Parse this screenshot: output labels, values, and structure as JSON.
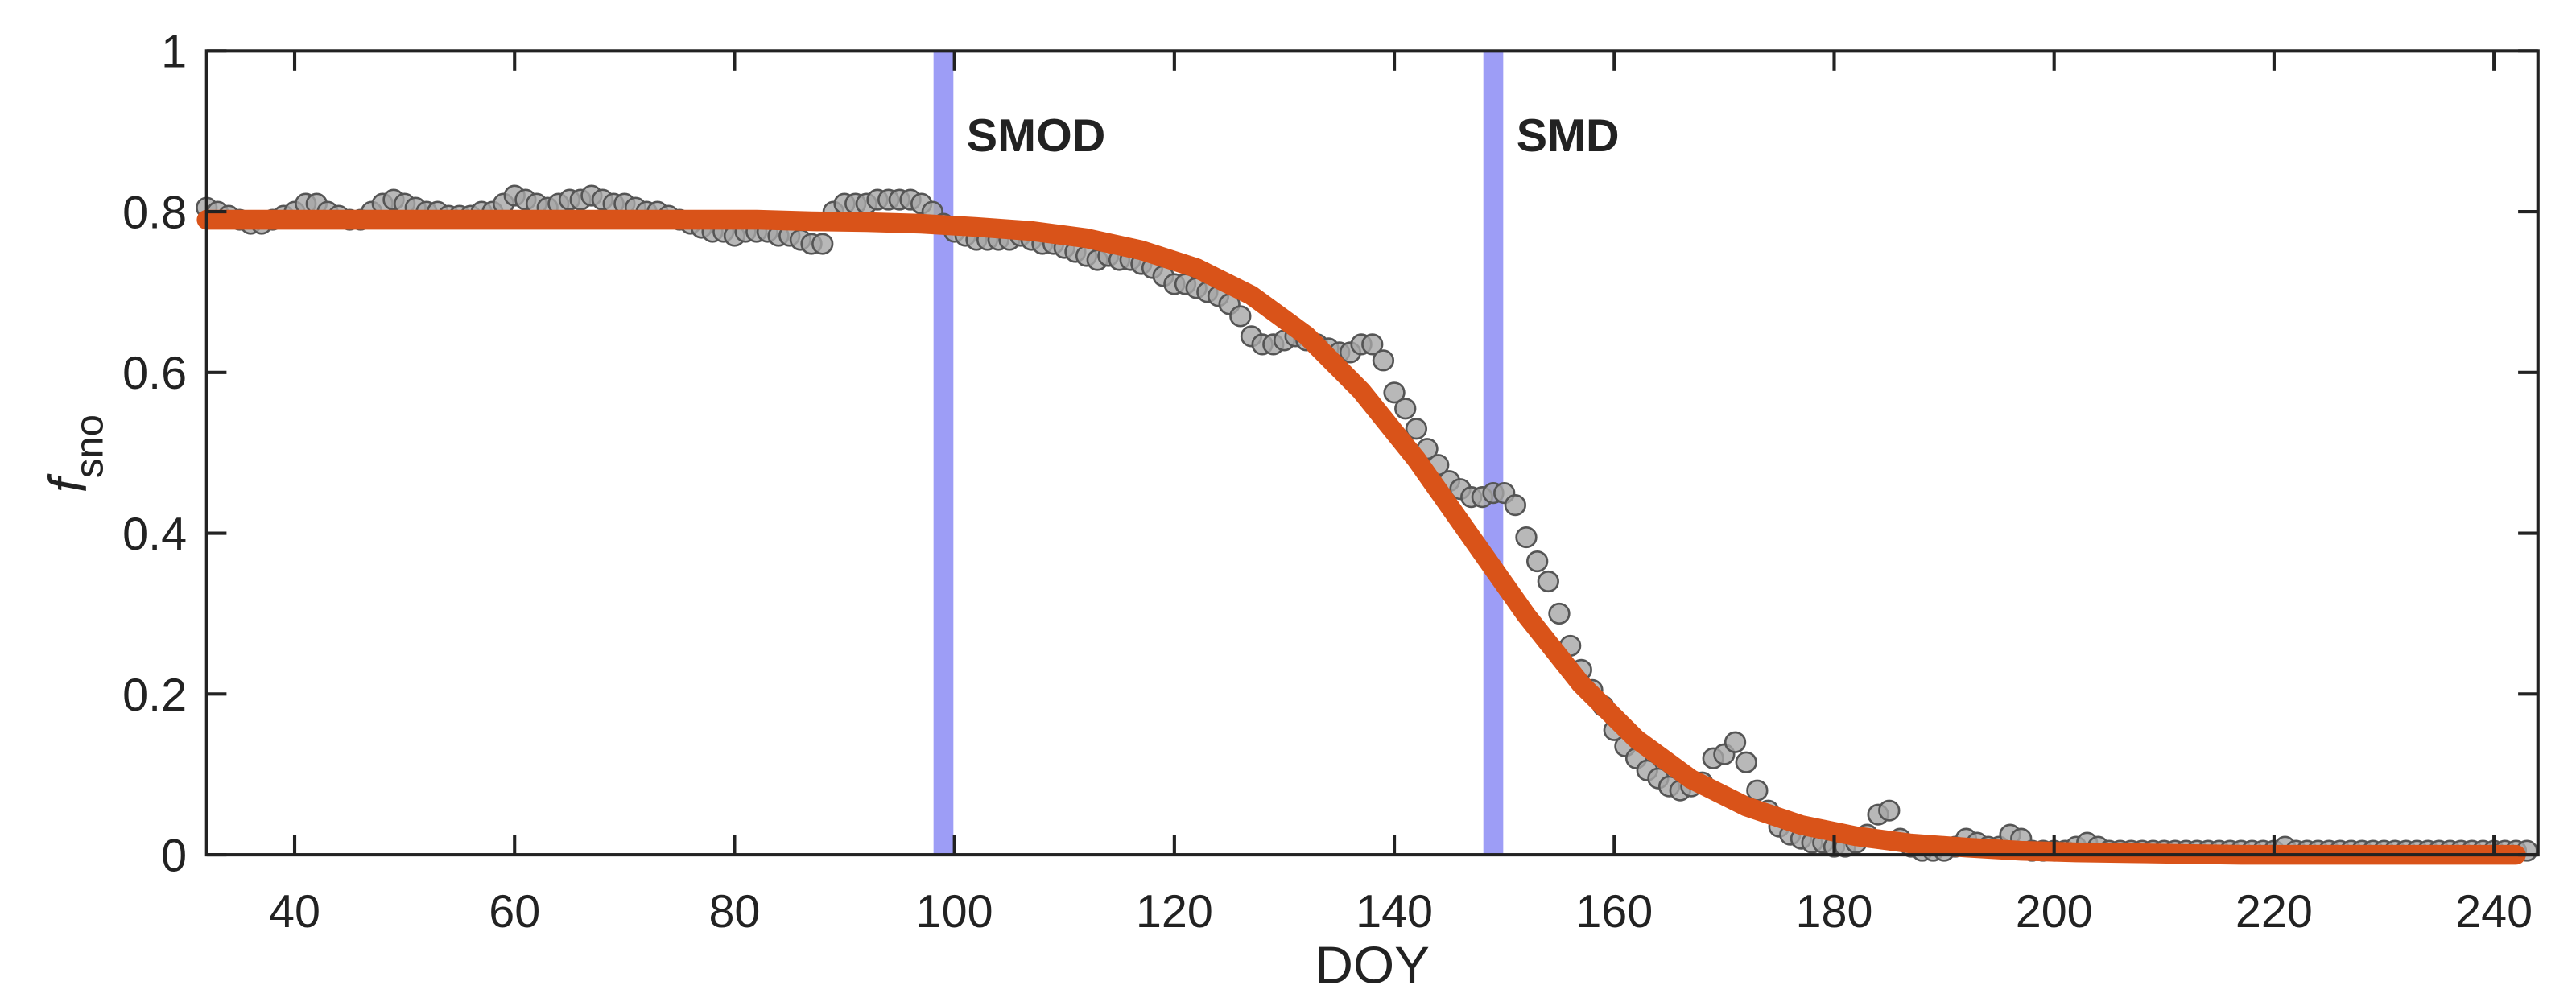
{
  "chart_data": {
    "type": "scatter",
    "xlabel": "DOY",
    "ylabel": {
      "main": "f",
      "sub": "sno"
    },
    "xlim": [
      32,
      244
    ],
    "ylim": [
      0,
      1
    ],
    "xticks": [
      40,
      60,
      80,
      100,
      120,
      140,
      160,
      180,
      200,
      220,
      240
    ],
    "yticks": [
      0,
      0.2,
      0.4,
      0.6,
      0.8,
      1
    ],
    "annotations": [
      {
        "text": "SMOD",
        "x": 99,
        "color": "#8c8cf5"
      },
      {
        "text": "SMD",
        "x": 149,
        "color": "#8c8cf5"
      }
    ],
    "series": [
      {
        "type": "scatter",
        "color": "#a6a6a6",
        "x": [
          32,
          33,
          34,
          35,
          36,
          37,
          38,
          39,
          40,
          41,
          42,
          43,
          44,
          45,
          46,
          47,
          48,
          49,
          50,
          51,
          52,
          53,
          54,
          55,
          56,
          57,
          58,
          59,
          60,
          61,
          62,
          63,
          64,
          65,
          66,
          67,
          68,
          69,
          70,
          71,
          72,
          73,
          74,
          75,
          76,
          77,
          78,
          79,
          80,
          81,
          82,
          83,
          84,
          85,
          86,
          87,
          88,
          89,
          90,
          91,
          92,
          93,
          94,
          95,
          96,
          97,
          98,
          99,
          100,
          101,
          102,
          103,
          104,
          105,
          106,
          107,
          108,
          109,
          110,
          111,
          112,
          113,
          114,
          115,
          116,
          117,
          118,
          119,
          120,
          121,
          122,
          123,
          124,
          125,
          126,
          127,
          128,
          129,
          130,
          131,
          132,
          133,
          134,
          135,
          136,
          137,
          138,
          139,
          140,
          141,
          142,
          143,
          144,
          145,
          146,
          147,
          148,
          149,
          150,
          151,
          152,
          153,
          154,
          155,
          156,
          157,
          158,
          159,
          160,
          161,
          162,
          163,
          164,
          165,
          166,
          167,
          168,
          169,
          170,
          171,
          172,
          173,
          174,
          175,
          176,
          177,
          178,
          179,
          180,
          181,
          182,
          183,
          184,
          185,
          186,
          187,
          188,
          189,
          190,
          191,
          192,
          193,
          194,
          195,
          196,
          197,
          198,
          199,
          200,
          201,
          202,
          203,
          204,
          205,
          206,
          207,
          208,
          209,
          210,
          211,
          212,
          213,
          214,
          215,
          216,
          217,
          218,
          219,
          220,
          221,
          222,
          223,
          224,
          225,
          226,
          227,
          228,
          229,
          230,
          231,
          232,
          233,
          234,
          235,
          236,
          237,
          238,
          239,
          240,
          241,
          242,
          243
        ],
        "values": [
          0.805,
          0.8,
          0.795,
          0.79,
          0.785,
          0.785,
          0.79,
          0.795,
          0.8,
          0.81,
          0.81,
          0.8,
          0.795,
          0.79,
          0.79,
          0.8,
          0.81,
          0.815,
          0.81,
          0.805,
          0.8,
          0.8,
          0.795,
          0.795,
          0.795,
          0.8,
          0.8,
          0.81,
          0.82,
          0.815,
          0.81,
          0.805,
          0.81,
          0.815,
          0.815,
          0.82,
          0.815,
          0.81,
          0.81,
          0.805,
          0.8,
          0.8,
          0.795,
          0.79,
          0.785,
          0.78,
          0.775,
          0.775,
          0.77,
          0.775,
          0.775,
          0.775,
          0.77,
          0.77,
          0.765,
          0.76,
          0.76,
          0.8,
          0.81,
          0.81,
          0.81,
          0.815,
          0.815,
          0.815,
          0.815,
          0.81,
          0.8,
          0.785,
          0.775,
          0.77,
          0.765,
          0.765,
          0.765,
          0.765,
          0.77,
          0.765,
          0.76,
          0.76,
          0.755,
          0.75,
          0.745,
          0.74,
          0.745,
          0.74,
          0.74,
          0.735,
          0.73,
          0.72,
          0.71,
          0.71,
          0.705,
          0.7,
          0.695,
          0.685,
          0.67,
          0.645,
          0.635,
          0.635,
          0.64,
          0.645,
          0.64,
          0.635,
          0.63,
          0.625,
          0.625,
          0.635,
          0.635,
          0.615,
          0.575,
          0.555,
          0.53,
          0.505,
          0.485,
          0.465,
          0.455,
          0.445,
          0.445,
          0.45,
          0.45,
          0.435,
          0.395,
          0.365,
          0.34,
          0.3,
          0.26,
          0.23,
          0.205,
          0.185,
          0.155,
          0.135,
          0.12,
          0.105,
          0.095,
          0.085,
          0.08,
          0.085,
          0.09,
          0.12,
          0.125,
          0.14,
          0.115,
          0.08,
          0.055,
          0.035,
          0.025,
          0.02,
          0.015,
          0.015,
          0.01,
          0.01,
          0.015,
          0.025,
          0.05,
          0.055,
          0.02,
          0.01,
          0.005,
          0.005,
          0.005,
          0.01,
          0.02,
          0.015,
          0.01,
          0.01,
          0.025,
          0.02,
          0.005,
          0.005,
          0.005,
          0.005,
          0.01,
          0.015,
          0.01,
          0.005,
          0.005,
          0.005,
          0.005,
          0.005,
          0.005,
          0.005,
          0.005,
          0.005,
          0.005,
          0.005,
          0.005,
          0.005,
          0.005,
          0.005,
          0.005,
          0.01,
          0.005,
          0.005,
          0.005,
          0.005,
          0.005,
          0.005,
          0.005,
          0.005,
          0.005,
          0.005,
          0.005,
          0.005,
          0.005,
          0.005,
          0.005,
          0.005,
          0.005,
          0.005,
          0.005,
          0.005,
          0.005,
          0.005
        ]
      },
      {
        "type": "line",
        "color": "#d95319",
        "x": [
          32,
          37,
          42,
          47,
          52,
          57,
          62,
          67,
          72,
          77,
          82,
          87,
          92,
          97,
          102,
          107,
          112,
          117,
          122,
          127,
          132,
          137,
          142,
          147,
          152,
          157,
          162,
          167,
          172,
          177,
          182,
          187,
          192,
          197,
          202,
          207,
          212,
          217,
          222,
          227,
          232,
          237,
          242
        ],
        "values": [
          0.79,
          0.79,
          0.79,
          0.79,
          0.79,
          0.79,
          0.79,
          0.79,
          0.79,
          0.79,
          0.79,
          0.788,
          0.787,
          0.785,
          0.781,
          0.776,
          0.767,
          0.752,
          0.73,
          0.696,
          0.646,
          0.577,
          0.492,
          0.395,
          0.298,
          0.212,
          0.144,
          0.094,
          0.06,
          0.037,
          0.023,
          0.014,
          0.009,
          0.005,
          0.003,
          0.002,
          0.001,
          0,
          0,
          0,
          0,
          0,
          0
        ]
      }
    ]
  }
}
